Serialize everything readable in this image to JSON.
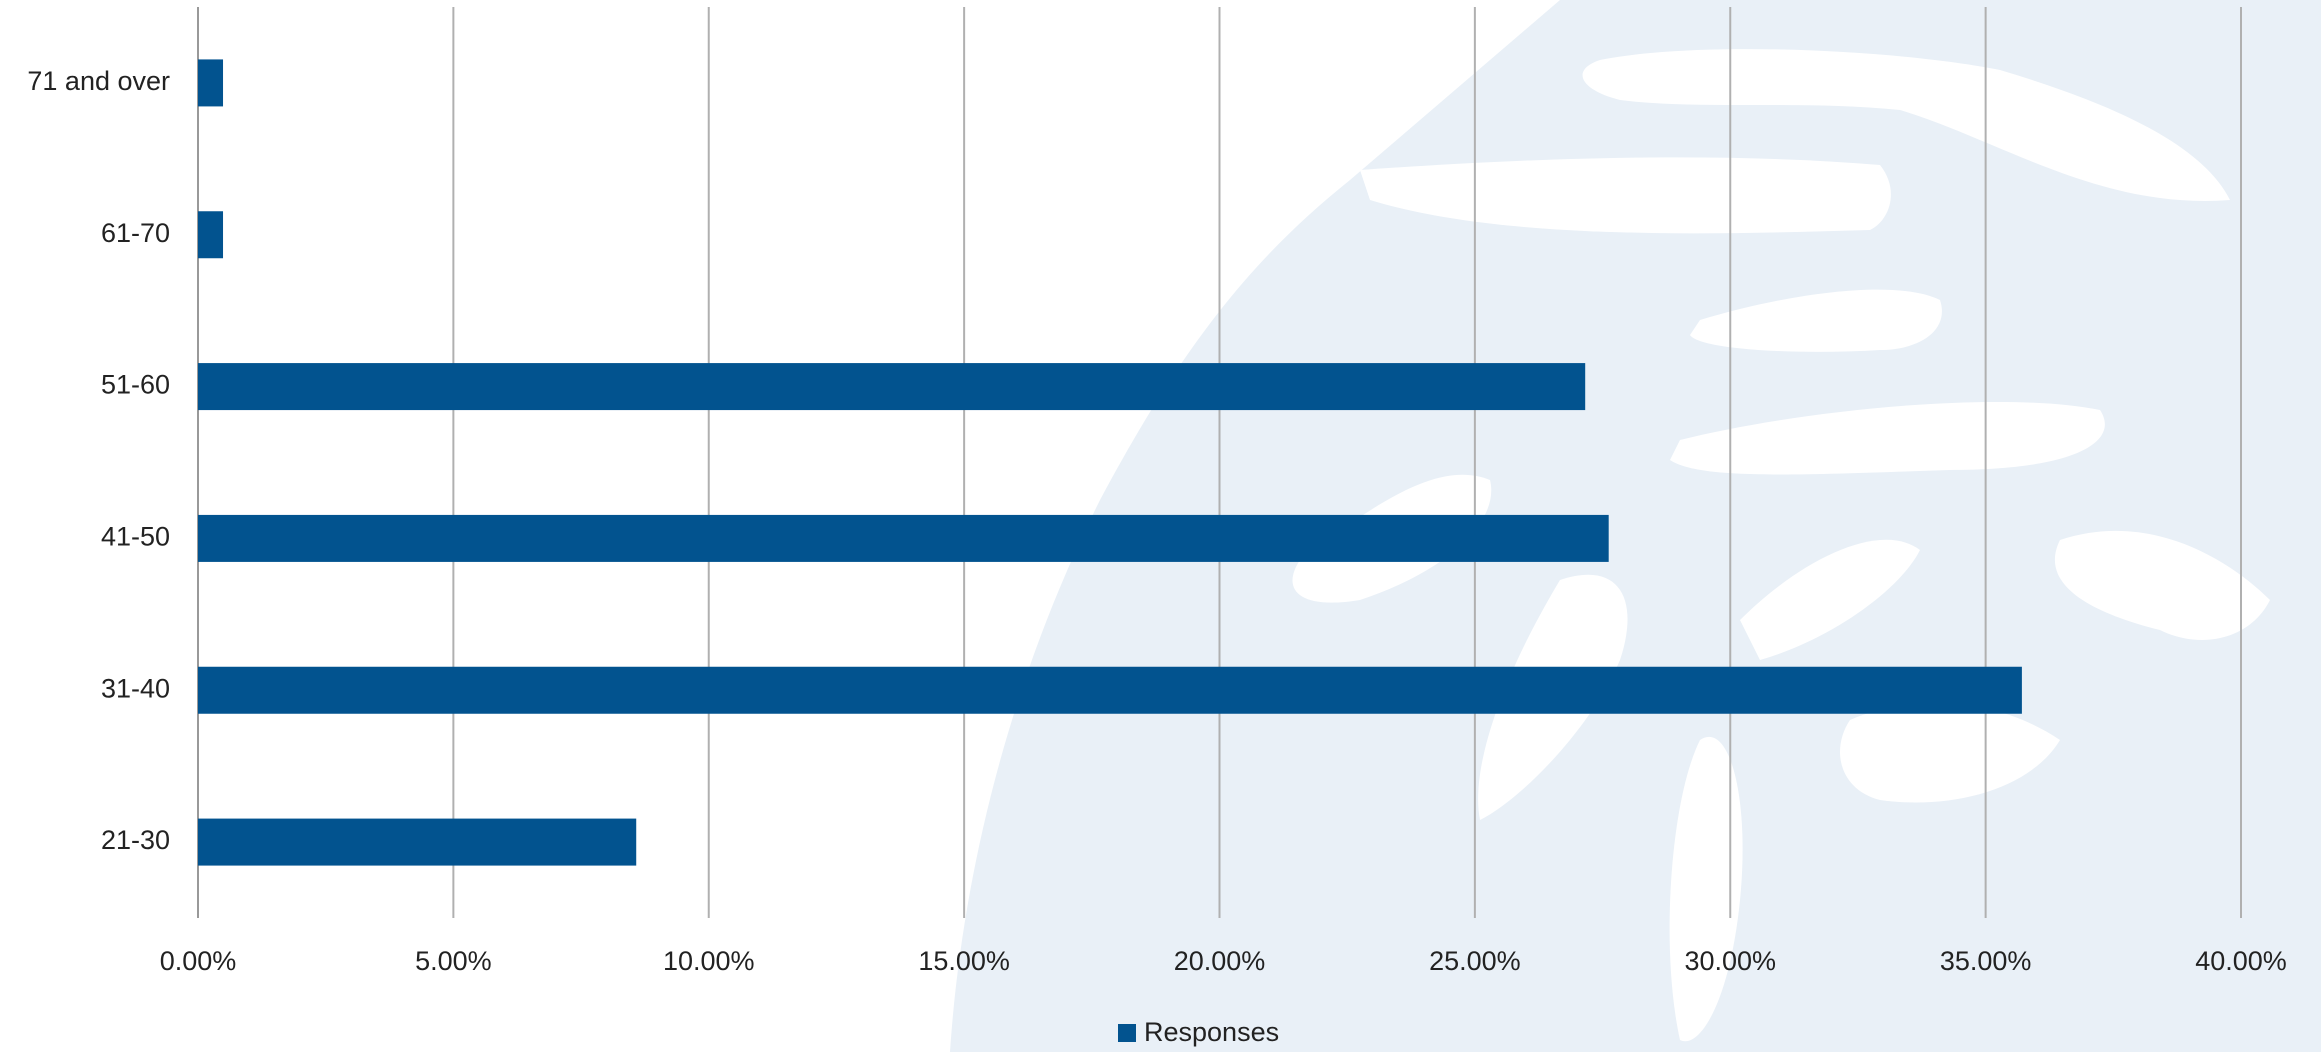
{
  "chart_data": {
    "type": "bar",
    "orientation": "horizontal",
    "categories": [
      "71 and over",
      "61-70",
      "51-60",
      "41-50",
      "31-40",
      "21-30"
    ],
    "series": [
      {
        "name": "Responses",
        "color": "#02538f",
        "values": [
          0.49,
          0.49,
          27.16,
          27.62,
          35.71,
          8.58
        ]
      }
    ],
    "xlim": [
      0,
      40
    ],
    "xticks": [
      {
        "value": 0,
        "label": "0.00%"
      },
      {
        "value": 5,
        "label": "5.00%"
      },
      {
        "value": 10,
        "label": "10.00%"
      },
      {
        "value": 15,
        "label": "15.00%"
      },
      {
        "value": 20,
        "label": "20.00%"
      },
      {
        "value": 25,
        "label": "25.00%"
      },
      {
        "value": 30,
        "label": "30.00%"
      },
      {
        "value": 35,
        "label": "35.00%"
      },
      {
        "value": 40,
        "label": "40.00%"
      }
    ],
    "grid": true,
    "legend": "bottom"
  }
}
